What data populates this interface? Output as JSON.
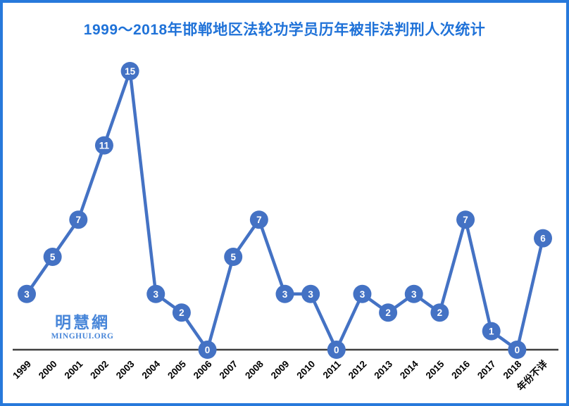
{
  "frame": {
    "border_color": "#2779DB",
    "background_color": "#FFFFFF"
  },
  "title": "1999～2018年邯郸地区法轮功学员历年被非法判刑人次统计",
  "title_color": "#1F72D8",
  "watermark": {
    "cjk": "明慧網",
    "latin": "MINGHUI.ORG",
    "color": "#4886D9"
  },
  "chart_data": {
    "type": "line",
    "title": "1999～2018年邯郸地区法轮功学员历年被非法判刑人次统计",
    "categories": [
      "1999",
      "2000",
      "2001",
      "2002",
      "2003",
      "2004",
      "2005",
      "2006",
      "2007",
      "2008",
      "2009",
      "2010",
      "2011",
      "2012",
      "2013",
      "2014",
      "2015",
      "2016",
      "2017",
      "2018",
      "年份不详"
    ],
    "values": [
      3,
      5,
      7,
      11,
      15,
      3,
      2,
      0,
      5,
      7,
      3,
      3,
      0,
      3,
      2,
      3,
      2,
      7,
      1,
      0,
      6
    ],
    "xlabel": "",
    "ylabel": "",
    "ylim": [
      0,
      15
    ],
    "grid": false,
    "legend": false,
    "series_color": "#4472C4",
    "marker_label_color": "#FFFFFF",
    "axis_line_color": "#3F3F3F",
    "tick_label_color": "#000000",
    "tick_label_angle_deg": -45
  }
}
